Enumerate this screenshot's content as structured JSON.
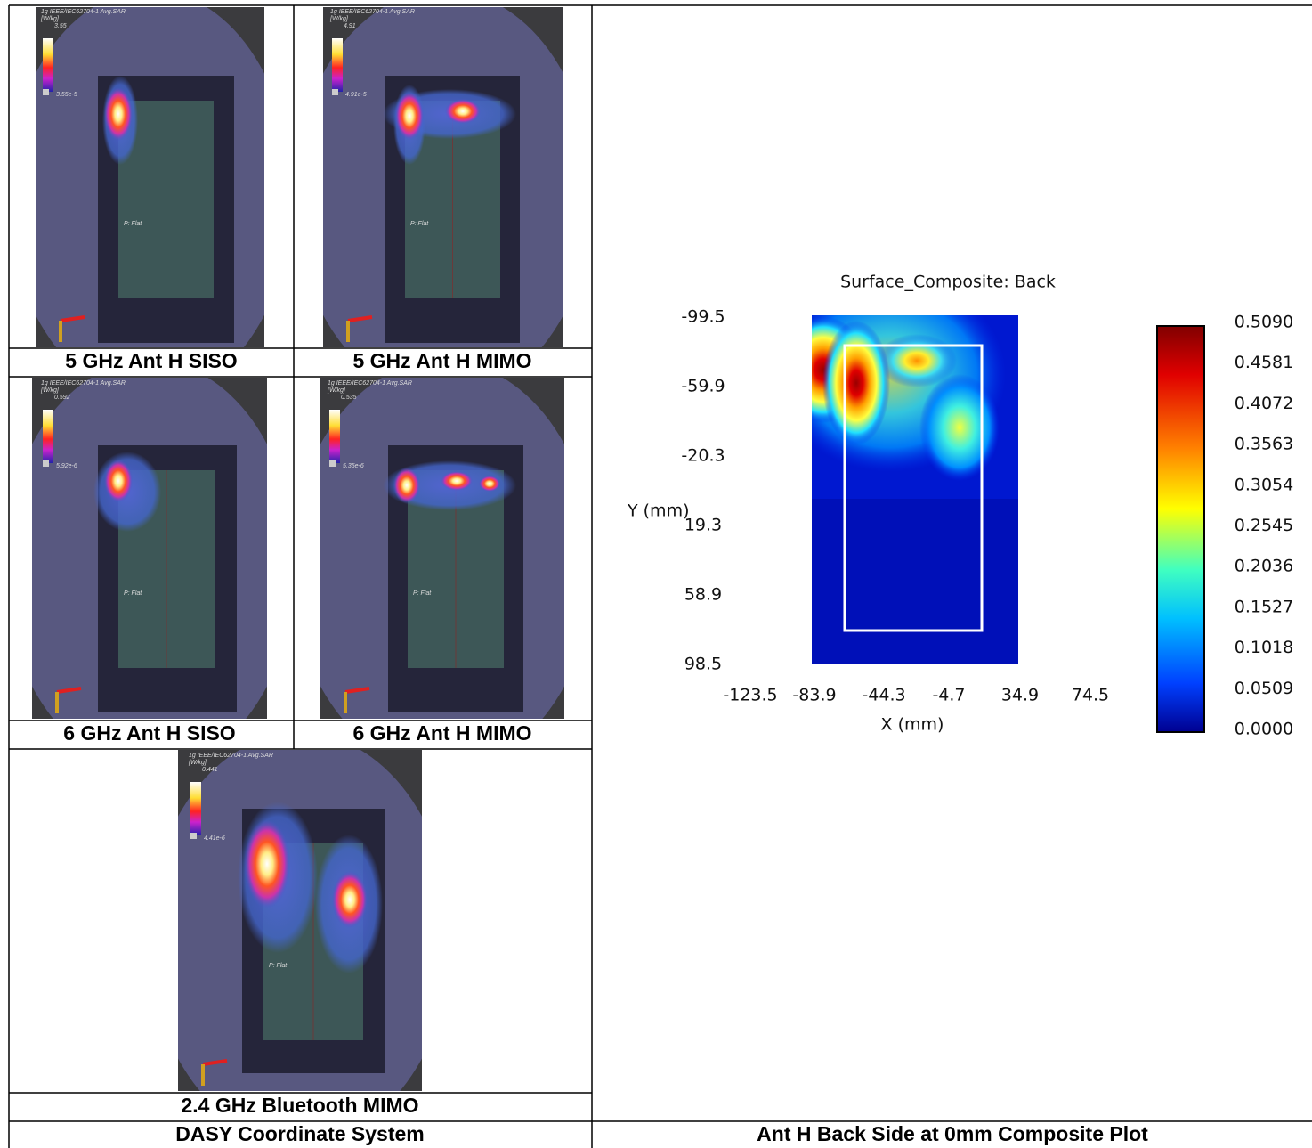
{
  "thumbnails": [
    {
      "caption": "5 GHz Ant H SISO",
      "legend_title": "1g IEEE/IEC62704-1 Avg.SAR",
      "unit": "[W/kg]",
      "max": "3.55",
      "min": "3.55e-5",
      "phantom_label": "P: Flat"
    },
    {
      "caption": "5 GHz Ant H MIMO",
      "legend_title": "1g IEEE/IEC62704-1 Avg.SAR",
      "unit": "[W/kg]",
      "max": "4.91",
      "min": "4.91e-5",
      "phantom_label": "P: Flat"
    },
    {
      "caption": "6 GHz Ant H SISO",
      "legend_title": "1g IEEE/IEC62704-1 Avg.SAR",
      "unit": "[W/kg]",
      "max": "0.592",
      "min": "5.92e-6",
      "phantom_label": "P: Flat"
    },
    {
      "caption": "6 GHz Ant H MIMO",
      "legend_title": "1g IEEE/IEC62704-1 Avg.SAR",
      "unit": "[W/kg]",
      "max": "0.535",
      "min": "5.35e-6",
      "phantom_label": "P: Flat"
    },
    {
      "caption": "2.4 GHz Bluetooth MIMO",
      "legend_title": "1g IEEE/IEC62704-1 Avg.SAR",
      "unit": "[W/kg]",
      "max": "0.441",
      "min": "4.41e-6",
      "phantom_label": "P: Flat"
    }
  ],
  "left_footer": "DASY Coordinate System",
  "composite": {
    "title": "Surface_Composite: Back",
    "y_label": "Y (mm)",
    "x_label": "X (mm)",
    "yticks": [
      "-99.5",
      "-59.9",
      "-20.3",
      "19.3",
      "58.9",
      "98.5"
    ],
    "xticks": [
      "-123.5",
      "-83.9",
      "-44.3",
      "-4.7",
      "34.9",
      "74.5"
    ],
    "colorbar_ticks": [
      "0.5090",
      "0.4581",
      "0.4072",
      "0.3563",
      "0.3054",
      "0.2545",
      "0.2036",
      "0.1527",
      "0.1018",
      "0.0509",
      "0.0000"
    ]
  },
  "right_footer": "Ant H Back Side at 0mm Composite Plot"
}
